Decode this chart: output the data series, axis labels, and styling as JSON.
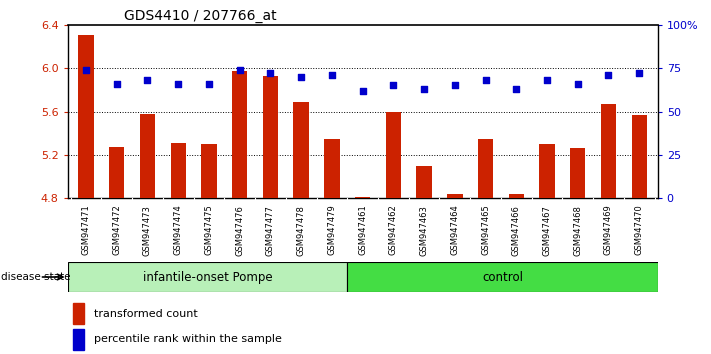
{
  "title": "GDS4410 / 207766_at",
  "samples": [
    "GSM947471",
    "GSM947472",
    "GSM947473",
    "GSM947474",
    "GSM947475",
    "GSM947476",
    "GSM947477",
    "GSM947478",
    "GSM947479",
    "GSM947461",
    "GSM947462",
    "GSM947463",
    "GSM947464",
    "GSM947465",
    "GSM947466",
    "GSM947467",
    "GSM947468",
    "GSM947469",
    "GSM947470"
  ],
  "bar_values": [
    6.31,
    5.27,
    5.58,
    5.31,
    5.3,
    5.97,
    5.93,
    5.69,
    5.35,
    4.81,
    5.6,
    5.1,
    4.84,
    5.35,
    4.84,
    5.3,
    5.26,
    5.67,
    5.57
  ],
  "dot_values": [
    74,
    66,
    68,
    66,
    66,
    74,
    72,
    70,
    71,
    62,
    65,
    63,
    65,
    68,
    63,
    68,
    66,
    71,
    72
  ],
  "ylim_left": [
    4.8,
    6.4
  ],
  "ylim_right": [
    0,
    100
  ],
  "yticks_left": [
    4.8,
    5.2,
    5.6,
    6.0,
    6.4
  ],
  "yticks_right": [
    0,
    25,
    50,
    75,
    100
  ],
  "ytick_labels_right": [
    "0",
    "25",
    "50",
    "75",
    "100%"
  ],
  "bar_color": "#cc2200",
  "dot_color": "#0000cc",
  "bar_width": 0.5,
  "base_value": 4.8,
  "grid_lines": [
    6.0,
    5.6,
    5.2
  ],
  "group1_label": "infantile-onset Pompe",
  "group2_label": "control",
  "n_group1": 9,
  "n_group2": 10,
  "disease_state_label": "disease state",
  "legend1_label": "transformed count",
  "legend2_label": "percentile rank within the sample",
  "bg_color": "#ffffff",
  "plot_bg_color": "#ffffff",
  "tick_label_color_left": "#cc2200",
  "tick_label_color_right": "#0000cc",
  "group1_color": "#b8f0b8",
  "group2_color": "#44dd44",
  "gray_box_color": "#c8c8c8"
}
